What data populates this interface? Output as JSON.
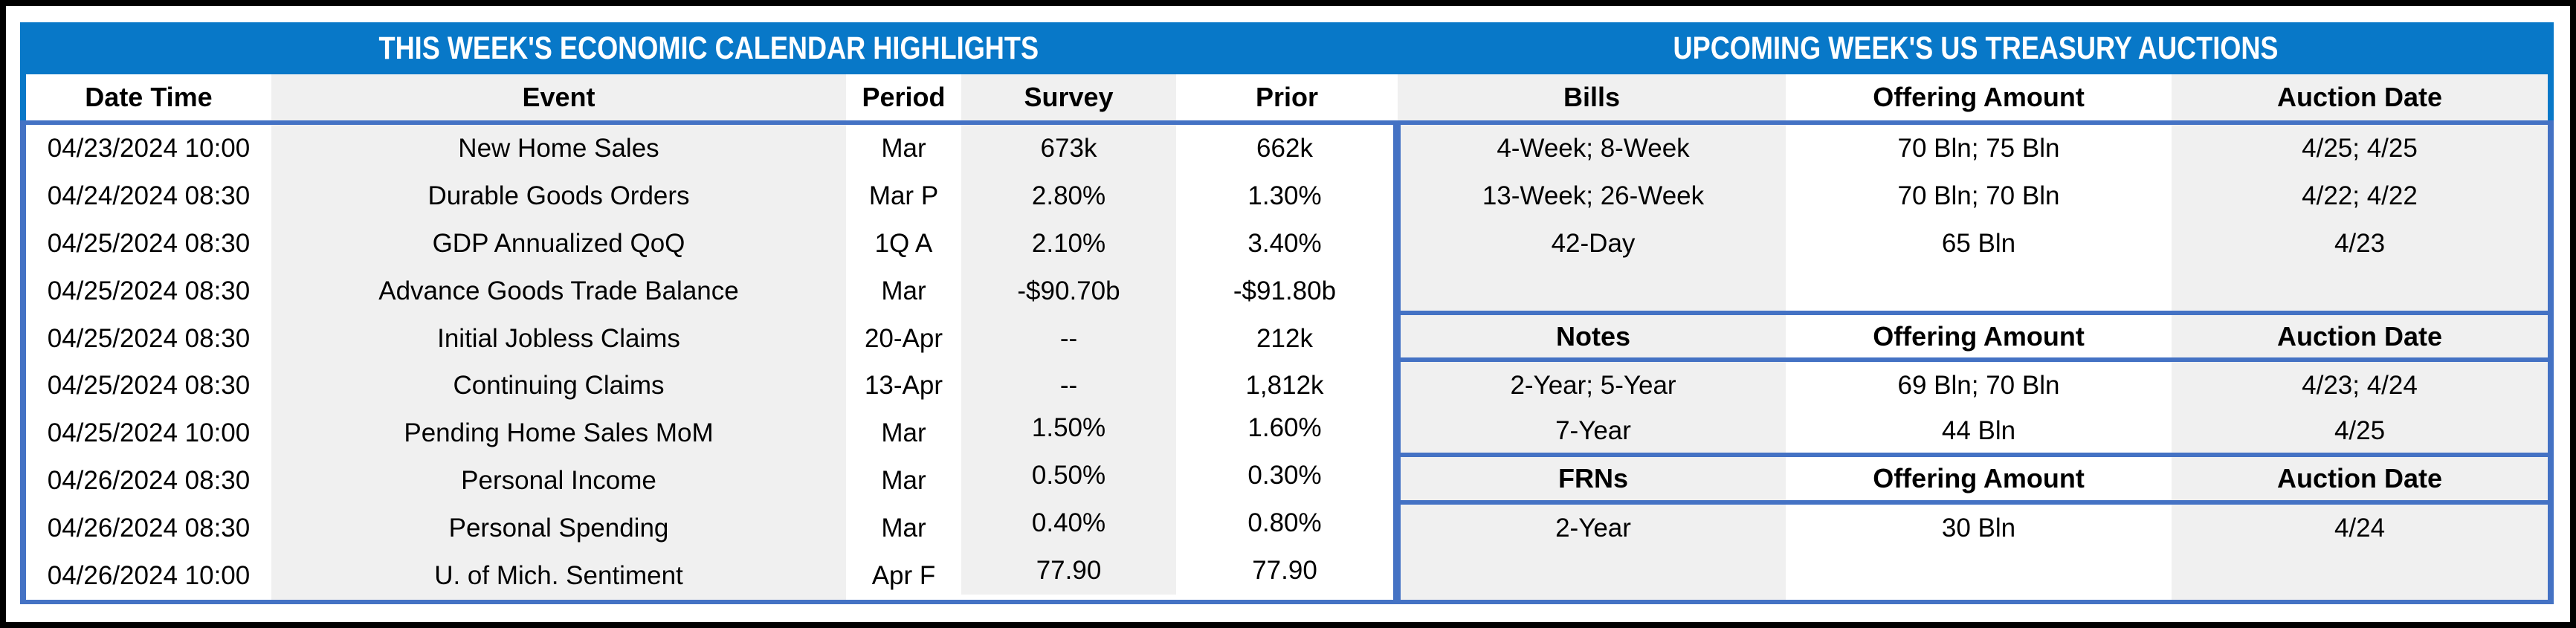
{
  "colors": {
    "title_bar_blue": "#0878c8",
    "border_blue": "#4472c4",
    "shaded_column_gray": "#f0f0f0",
    "outer_frame": "#000000"
  },
  "left": {
    "title": "THIS WEEK'S ECONOMIC CALENDAR HIGHLIGHTS",
    "headers": {
      "date": "Date Time",
      "event": "Event",
      "period": "Period",
      "survey": "Survey",
      "prior": "Prior"
    },
    "rows": [
      {
        "date": "04/23/2024 10:00",
        "event": "New Home Sales",
        "period": "Mar",
        "survey": "673k",
        "prior": "662k"
      },
      {
        "date": "04/24/2024 08:30",
        "event": "Durable Goods Orders",
        "period": "Mar P",
        "survey": "2.80%",
        "prior": "1.30%"
      },
      {
        "date": "04/25/2024 08:30",
        "event": "GDP Annualized QoQ",
        "period": "1Q A",
        "survey": "2.10%",
        "prior": "3.40%"
      },
      {
        "date": "04/25/2024 08:30",
        "event": "Advance Goods Trade Balance",
        "period": "Mar",
        "survey": "-$90.70b",
        "prior": "-$91.80b"
      },
      {
        "date": "04/25/2024 08:30",
        "event": "Initial Jobless Claims",
        "period": "20-Apr",
        "survey": "--",
        "prior": "212k"
      },
      {
        "date": "04/25/2024 08:30",
        "event": "Continuing Claims",
        "period": "13-Apr",
        "survey": "--",
        "prior": "1,812k"
      },
      {
        "date": "04/25/2024 10:00",
        "event": "Pending Home Sales MoM",
        "period": "Mar",
        "survey": "1.50%",
        "prior": "1.60%"
      },
      {
        "date": "04/26/2024 08:30",
        "event": "Personal Income",
        "period": "Mar",
        "survey": "0.50%",
        "prior": "0.30%"
      },
      {
        "date": "04/26/2024 08:30",
        "event": "Personal Spending",
        "period": "Mar",
        "survey": "0.40%",
        "prior": "0.80%"
      },
      {
        "date": "04/26/2024 10:00",
        "event": "U. of Mich. Sentiment",
        "period": "Apr F",
        "survey": "77.90",
        "prior": "77.90"
      }
    ]
  },
  "right": {
    "title": "UPCOMING WEEK'S US TREASURY AUCTIONS",
    "headers": {
      "security": "Bills",
      "offering": "Offering Amount",
      "auction": "Auction Date"
    },
    "rows": [
      {
        "security": "4-Week; 8-Week",
        "offering": "70 Bln; 75 Bln",
        "auction": "4/25; 4/25"
      },
      {
        "security": "13-Week; 26-Week",
        "offering": "70 Bln; 70 Bln",
        "auction": "4/22; 4/22"
      },
      {
        "security": "42-Day",
        "offering": "65 Bln",
        "auction": "4/23"
      },
      {
        "security": "",
        "offering": "",
        "auction": ""
      },
      {
        "security": "Notes",
        "offering": "Offering Amount",
        "auction": "Auction Date"
      },
      {
        "security": "2-Year; 5-Year",
        "offering": "69 Bln; 70 Bln",
        "auction": "4/23; 4/24"
      },
      {
        "security": "7-Year",
        "offering": "44 Bln",
        "auction": "4/25"
      },
      {
        "security": "FRNs",
        "offering": "Offering Amount",
        "auction": "Auction Date"
      },
      {
        "security": "2-Year",
        "offering": "30 Bln",
        "auction": "4/24"
      },
      {
        "security": "",
        "offering": "",
        "auction": ""
      }
    ]
  }
}
